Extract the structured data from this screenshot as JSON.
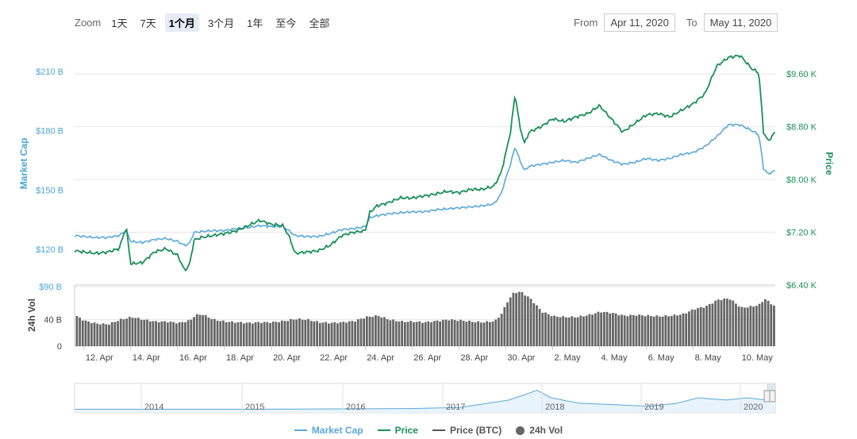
{
  "zoom": {
    "label": "Zoom",
    "buttons": [
      "1天",
      "7天",
      "1个月",
      "3个月",
      "1年",
      "至今",
      "全部"
    ],
    "active_index": 2
  },
  "range": {
    "from_label": "From",
    "from_value": "Apr 11, 2020",
    "to_label": "To",
    "to_value": "May 11, 2020"
  },
  "colors": {
    "market_cap": "#5aa8d8",
    "price": "#1a8f5a",
    "price_btc": "#555555",
    "volume": "#666666",
    "navigator_fill": "#e8f3fb",
    "left_axis_text": "#4aa6d6",
    "right_axis_text": "#1a8f5a"
  },
  "chart_data": {
    "type": "line",
    "x_tick_labels": [
      "12. Apr",
      "14. Apr",
      "16. Apr",
      "18. Apr",
      "20. Apr",
      "22. Apr",
      "24. Apr",
      "26. Apr",
      "28. Apr",
      "30. Apr",
      "2. May",
      "4. May",
      "6. May",
      "8. May",
      "10. May"
    ],
    "left_axis": {
      "title": "Market Cap",
      "ticks": [
        "$120 B",
        "$150 B",
        "$180 B",
        "$210 B"
      ],
      "range": [
        102,
        222
      ]
    },
    "right_axis": {
      "title": "Price",
      "ticks": [
        "$6.40 K",
        "$7.20 K",
        "$8.00 K",
        "$8.80 K",
        "$9.60 K"
      ],
      "range": [
        6.4,
        10.0
      ]
    },
    "volume_axis": {
      "title": "24h Vol",
      "ticks": [
        "0",
        "40 B",
        "$90 B"
      ],
      "range": [
        0,
        90
      ]
    },
    "x_range": [
      11.6,
      41.5
    ],
    "series": [
      {
        "name": "Market Cap",
        "axis": "left",
        "points": [
          [
            11.6,
            127
          ],
          [
            12.0,
            126.5
          ],
          [
            12.5,
            126
          ],
          [
            13.0,
            126
          ],
          [
            13.5,
            127
          ],
          [
            13.8,
            129.5
          ],
          [
            14.0,
            124
          ],
          [
            14.5,
            123.5
          ],
          [
            15.0,
            125
          ],
          [
            15.5,
            125.5
          ],
          [
            16.0,
            124
          ],
          [
            16.3,
            122
          ],
          [
            16.5,
            123
          ],
          [
            16.7,
            128.5
          ],
          [
            17.0,
            129
          ],
          [
            17.5,
            129.5
          ],
          [
            18.0,
            129.5
          ],
          [
            18.5,
            130.5
          ],
          [
            19.0,
            131
          ],
          [
            19.5,
            132
          ],
          [
            20.0,
            131.5
          ],
          [
            20.5,
            131.5
          ],
          [
            20.8,
            129
          ],
          [
            21.0,
            127
          ],
          [
            21.5,
            126.5
          ],
          [
            22.0,
            126.5
          ],
          [
            22.5,
            128
          ],
          [
            23.0,
            130
          ],
          [
            23.5,
            130.5
          ],
          [
            24.0,
            131.5
          ],
          [
            24.2,
            136
          ],
          [
            24.5,
            137
          ],
          [
            25.0,
            138
          ],
          [
            25.5,
            138.5
          ],
          [
            26.0,
            139
          ],
          [
            26.5,
            139
          ],
          [
            27.0,
            140
          ],
          [
            27.5,
            140.5
          ],
          [
            28.0,
            141
          ],
          [
            28.5,
            141.5
          ],
          [
            29.0,
            142
          ],
          [
            29.5,
            143
          ],
          [
            29.8,
            148
          ],
          [
            30.0,
            156
          ],
          [
            30.2,
            163
          ],
          [
            30.4,
            172
          ],
          [
            30.6,
            165
          ],
          [
            30.8,
            160
          ],
          [
            31.0,
            162
          ],
          [
            31.5,
            163
          ],
          [
            32.0,
            164
          ],
          [
            32.5,
            165
          ],
          [
            33.0,
            164
          ],
          [
            33.5,
            166
          ],
          [
            34.0,
            168
          ],
          [
            34.5,
            165
          ],
          [
            35.0,
            163
          ],
          [
            35.5,
            164
          ],
          [
            36.0,
            166
          ],
          [
            36.5,
            165
          ],
          [
            37.0,
            166
          ],
          [
            37.5,
            168
          ],
          [
            38.0,
            169
          ],
          [
            38.5,
            172
          ],
          [
            39.0,
            177
          ],
          [
            39.5,
            183
          ],
          [
            40.0,
            183
          ],
          [
            40.5,
            180
          ],
          [
            40.8,
            178
          ],
          [
            41.0,
            161
          ],
          [
            41.2,
            158
          ],
          [
            41.5,
            160
          ]
        ]
      },
      {
        "name": "Price",
        "axis": "right",
        "points": [
          [
            11.6,
            6.92
          ],
          [
            12.0,
            6.9
          ],
          [
            12.5,
            6.88
          ],
          [
            13.0,
            6.9
          ],
          [
            13.5,
            6.95
          ],
          [
            13.8,
            7.28
          ],
          [
            14.0,
            6.72
          ],
          [
            14.5,
            6.74
          ],
          [
            15.0,
            6.9
          ],
          [
            15.5,
            6.95
          ],
          [
            16.0,
            6.85
          ],
          [
            16.3,
            6.62
          ],
          [
            16.5,
            6.7
          ],
          [
            16.7,
            7.08
          ],
          [
            17.0,
            7.12
          ],
          [
            17.5,
            7.15
          ],
          [
            18.0,
            7.18
          ],
          [
            18.5,
            7.22
          ],
          [
            19.0,
            7.3
          ],
          [
            19.5,
            7.38
          ],
          [
            20.0,
            7.32
          ],
          [
            20.5,
            7.3
          ],
          [
            20.8,
            7.1
          ],
          [
            21.0,
            6.88
          ],
          [
            21.5,
            6.9
          ],
          [
            22.0,
            6.92
          ],
          [
            22.5,
            7.0
          ],
          [
            23.0,
            7.15
          ],
          [
            23.5,
            7.2
          ],
          [
            24.0,
            7.22
          ],
          [
            24.2,
            7.5
          ],
          [
            24.5,
            7.6
          ],
          [
            25.0,
            7.65
          ],
          [
            25.5,
            7.72
          ],
          [
            26.0,
            7.72
          ],
          [
            26.5,
            7.75
          ],
          [
            27.0,
            7.78
          ],
          [
            27.5,
            7.82
          ],
          [
            28.0,
            7.8
          ],
          [
            28.5,
            7.85
          ],
          [
            29.0,
            7.85
          ],
          [
            29.5,
            7.9
          ],
          [
            29.8,
            8.1
          ],
          [
            30.0,
            8.4
          ],
          [
            30.2,
            8.72
          ],
          [
            30.4,
            9.3
          ],
          [
            30.6,
            8.8
          ],
          [
            30.8,
            8.55
          ],
          [
            31.0,
            8.72
          ],
          [
            31.5,
            8.8
          ],
          [
            32.0,
            8.92
          ],
          [
            32.5,
            8.88
          ],
          [
            33.0,
            8.95
          ],
          [
            33.5,
            9.0
          ],
          [
            34.0,
            9.12
          ],
          [
            34.5,
            8.92
          ],
          [
            35.0,
            8.72
          ],
          [
            35.5,
            8.85
          ],
          [
            36.0,
            8.98
          ],
          [
            36.5,
            9.0
          ],
          [
            37.0,
            8.95
          ],
          [
            37.5,
            9.05
          ],
          [
            38.0,
            9.15
          ],
          [
            38.5,
            9.3
          ],
          [
            39.0,
            9.72
          ],
          [
            39.5,
            9.85
          ],
          [
            40.0,
            9.88
          ],
          [
            40.5,
            9.68
          ],
          [
            40.8,
            9.62
          ],
          [
            41.0,
            8.72
          ],
          [
            41.2,
            8.58
          ],
          [
            41.5,
            8.72
          ]
        ]
      },
      {
        "name": "24h Vol",
        "axis": "volume",
        "points": [
          [
            11.6,
            46
          ],
          [
            12.0,
            38
          ],
          [
            12.5,
            34
          ],
          [
            13.0,
            33
          ],
          [
            13.5,
            40
          ],
          [
            14.0,
            44
          ],
          [
            14.5,
            40
          ],
          [
            15.0,
            37
          ],
          [
            15.5,
            37
          ],
          [
            16.0,
            35
          ],
          [
            16.5,
            39
          ],
          [
            16.7,
            47
          ],
          [
            17.0,
            48
          ],
          [
            17.5,
            40
          ],
          [
            18.0,
            37
          ],
          [
            18.5,
            36
          ],
          [
            19.0,
            35
          ],
          [
            19.5,
            36
          ],
          [
            20.0,
            36
          ],
          [
            20.5,
            38
          ],
          [
            21.0,
            41
          ],
          [
            21.5,
            40
          ],
          [
            22.0,
            36
          ],
          [
            22.5,
            35
          ],
          [
            23.0,
            36
          ],
          [
            23.5,
            38
          ],
          [
            24.0,
            44
          ],
          [
            24.5,
            46
          ],
          [
            25.0,
            40
          ],
          [
            25.5,
            37
          ],
          [
            26.0,
            37
          ],
          [
            26.5,
            36
          ],
          [
            27.0,
            38
          ],
          [
            27.5,
            40
          ],
          [
            28.0,
            39
          ],
          [
            28.5,
            37
          ],
          [
            29.0,
            36
          ],
          [
            29.5,
            38
          ],
          [
            29.8,
            50
          ],
          [
            30.0,
            66
          ],
          [
            30.3,
            81
          ],
          [
            30.6,
            82
          ],
          [
            31.0,
            72
          ],
          [
            31.5,
            52
          ],
          [
            32.0,
            45
          ],
          [
            32.5,
            44
          ],
          [
            33.0,
            44
          ],
          [
            33.5,
            47
          ],
          [
            34.0,
            52
          ],
          [
            34.5,
            50
          ],
          [
            35.0,
            46
          ],
          [
            35.5,
            47
          ],
          [
            36.0,
            46
          ],
          [
            36.5,
            45
          ],
          [
            37.0,
            46
          ],
          [
            37.5,
            48
          ],
          [
            38.0,
            56
          ],
          [
            38.5,
            60
          ],
          [
            39.0,
            70
          ],
          [
            39.5,
            72
          ],
          [
            40.0,
            58
          ],
          [
            40.5,
            60
          ],
          [
            40.8,
            63
          ],
          [
            41.0,
            72
          ],
          [
            41.2,
            66
          ],
          [
            41.5,
            59
          ]
        ]
      }
    ],
    "navigator": {
      "year_labels": [
        "2014",
        "2015",
        "2016",
        "2017",
        "2018",
        "2019",
        "2020"
      ]
    },
    "legend": [
      {
        "name": "Market Cap",
        "marker": "line"
      },
      {
        "name": "Price",
        "marker": "line"
      },
      {
        "name": "Price (BTC)",
        "marker": "line"
      },
      {
        "name": "24h Vol",
        "marker": "dot"
      }
    ]
  }
}
